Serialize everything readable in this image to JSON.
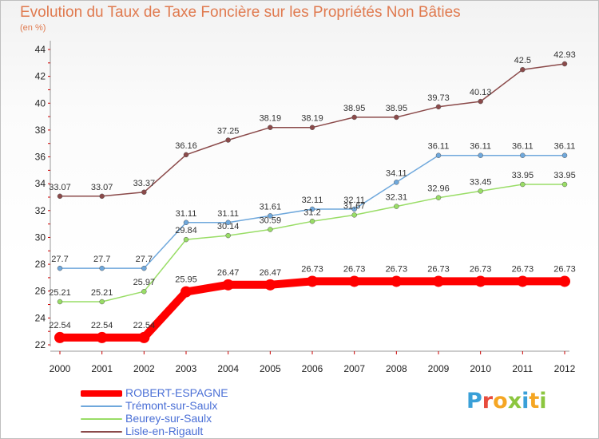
{
  "header": {
    "title": "Evolution du Taux de Taxe Foncière sur les Propriétés Non Bâties",
    "unit": "(en %)"
  },
  "chart_data": {
    "type": "line",
    "title": "Evolution du Taux de Taxe Foncière sur les Propriétés Non Bâties",
    "ylabel": "(en %)",
    "xlabel": "",
    "x": [
      "2000",
      "2001",
      "2002",
      "2003",
      "2004",
      "2005",
      "2006",
      "2007",
      "2008",
      "2009",
      "2010",
      "2011",
      "2012"
    ],
    "ylim": [
      22,
      44
    ],
    "yticks": [
      22,
      24,
      26,
      28,
      30,
      32,
      34,
      36,
      38,
      40,
      42,
      44
    ],
    "grid": false,
    "legend_position": "bottom-left",
    "series": [
      {
        "name": "ROBERT-ESPAGNE",
        "color": "#ff0000",
        "values": [
          22.54,
          22.54,
          22.54,
          25.95,
          26.47,
          26.47,
          26.73,
          26.73,
          26.73,
          26.73,
          26.73,
          26.73,
          26.73
        ],
        "labels": [
          "22.54",
          "22.54",
          "22.54",
          "25.95",
          "26.47",
          "26.47",
          "26.73",
          "26.73",
          "26.73",
          "26.73",
          "26.73",
          "26.73",
          "26.73"
        ]
      },
      {
        "name": "Trémont-sur-Saulx",
        "color": "#6fa8dc",
        "values": [
          27.7,
          27.7,
          27.7,
          31.11,
          31.11,
          31.61,
          32.11,
          32.11,
          34.11,
          36.11,
          36.11,
          36.11,
          36.11
        ],
        "labels": [
          "27.7",
          "27.7",
          "27.7",
          "31.11",
          "31.11",
          "31.61",
          "32.11",
          "32.11",
          "34.11",
          "36.11",
          "36.11",
          "36.11",
          "36.11"
        ]
      },
      {
        "name": "Beurey-sur-Saulx",
        "color": "#99dd66",
        "values": [
          25.21,
          25.21,
          25.97,
          29.84,
          30.14,
          30.59,
          31.2,
          31.67,
          32.31,
          32.96,
          33.45,
          33.95,
          33.95
        ],
        "labels": [
          "25.21",
          "25.21",
          "25.97",
          "29.84",
          "30.14",
          "30.59",
          "31.2",
          "31.67",
          "32.31",
          "32.96",
          "33.45",
          "33.95",
          "33.95"
        ]
      },
      {
        "name": "Lisle-en-Rigault",
        "color": "#8b4a4a",
        "values": [
          33.07,
          33.07,
          33.37,
          36.16,
          37.25,
          38.19,
          38.19,
          38.95,
          38.95,
          39.73,
          40.13,
          42.5,
          42.93
        ],
        "labels": [
          "33.07",
          "33.07",
          "33.37",
          "36.16",
          "37.25",
          "38.19",
          "38.19",
          "38.95",
          "38.95",
          "39.73",
          "40.13",
          "42.5",
          "42.93"
        ]
      }
    ]
  },
  "brand": {
    "logo_letters": [
      "P",
      "r",
      "o",
      "x",
      "i",
      "t",
      "i"
    ],
    "logo_colors": [
      "#3aa0d8",
      "#e84c3d",
      "#f5a623",
      "#8cc63f",
      "#3aa0d8",
      "#f5a623",
      "#8cc63f"
    ]
  }
}
